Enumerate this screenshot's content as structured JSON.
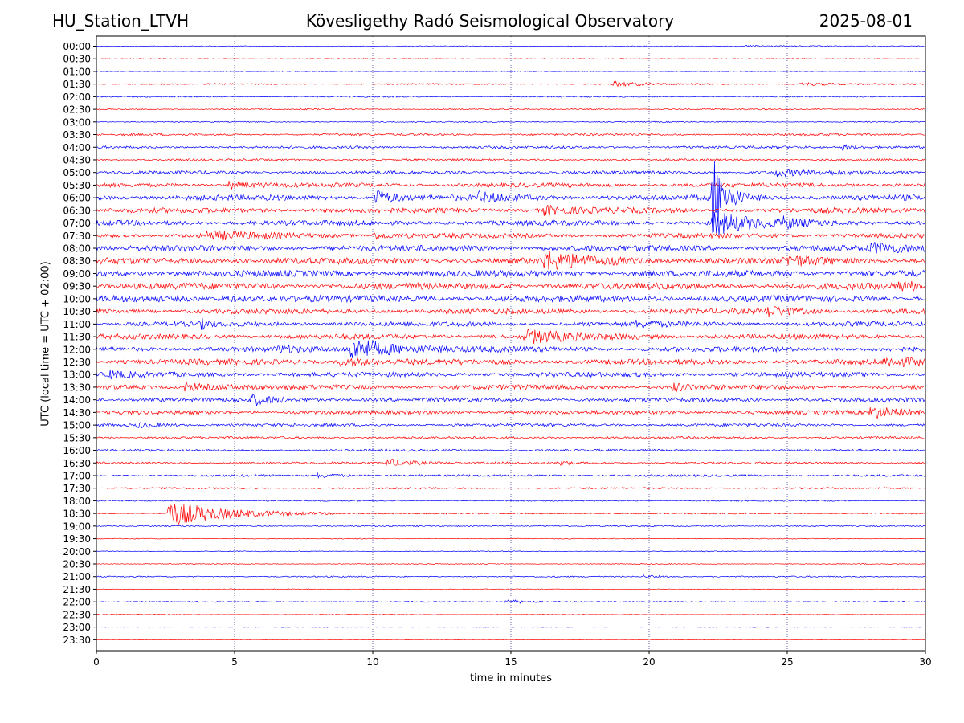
{
  "header": {
    "station": "HU_Station_LTVH",
    "observatory": "Kövesligethy Radó Seismological Observatory",
    "date": "2025-08-01"
  },
  "chart_data": {
    "type": "line",
    "xlabel": "time in minutes",
    "ylabel": "UTC (local time = UTC + 02:00)",
    "xlim": [
      0,
      30
    ],
    "x_ticks": [
      0,
      5,
      10,
      15,
      20,
      25,
      30
    ],
    "vertical_grid": [
      5,
      10,
      15,
      20,
      25
    ],
    "row_labels": [
      "00:00",
      "00:30",
      "01:00",
      "01:30",
      "02:00",
      "02:30",
      "03:00",
      "03:30",
      "04:00",
      "04:30",
      "05:00",
      "05:30",
      "06:00",
      "06:30",
      "07:00",
      "07:30",
      "08:00",
      "08:30",
      "09:00",
      "09:30",
      "10:00",
      "10:30",
      "11:00",
      "11:30",
      "12:00",
      "12:30",
      "13:00",
      "13:30",
      "14:00",
      "14:30",
      "15:00",
      "15:30",
      "16:00",
      "16:30",
      "17:00",
      "17:30",
      "18:00",
      "18:30",
      "19:00",
      "19:30",
      "20:00",
      "20:30",
      "21:00",
      "21:30",
      "22:00",
      "22:30",
      "23:00",
      "23:30"
    ],
    "colors": [
      "#0000ff",
      "#ff0000"
    ],
    "noise_levels": [
      0.4,
      0.4,
      0.3,
      0.6,
      0.6,
      0.6,
      0.5,
      1.0,
      1.2,
      1.0,
      1.5,
      2.0,
      2.6,
      2.4,
      2.4,
      2.2,
      2.8,
      3.0,
      3.0,
      3.0,
      3.0,
      2.4,
      2.2,
      2.4,
      2.4,
      2.6,
      2.2,
      2.2,
      2.0,
      1.8,
      1.4,
      1.1,
      1.0,
      1.0,
      1.0,
      0.7,
      0.6,
      0.6,
      0.6,
      0.4,
      0.4,
      0.4,
      0.6,
      0.4,
      0.5,
      0.3,
      0.3,
      0.3
    ],
    "events": [
      {
        "row": 0,
        "minute": 23.5,
        "amp": 1.2,
        "dur": 1.5
      },
      {
        "row": 3,
        "minute": 18.7,
        "amp": 3,
        "dur": 1
      },
      {
        "row": 3,
        "minute": 25.5,
        "amp": 2,
        "dur": 1
      },
      {
        "row": 8,
        "minute": 27,
        "amp": 3,
        "dur": 0.8
      },
      {
        "row": 10,
        "minute": 24.5,
        "amp": 4,
        "dur": 1.5
      },
      {
        "row": 11,
        "minute": 4.8,
        "amp": 4,
        "dur": 0.8
      },
      {
        "row": 12,
        "minute": 10.1,
        "amp": 12,
        "dur": 0.5
      },
      {
        "row": 12,
        "minute": 13.8,
        "amp": 6,
        "dur": 0.8
      },
      {
        "row": 12,
        "minute": 22.3,
        "amp": 60,
        "dur": 0.4
      },
      {
        "row": 13,
        "minute": 16.2,
        "amp": 5,
        "dur": 1
      },
      {
        "row": 14,
        "minute": 22.3,
        "amp": 15,
        "dur": 1.2
      },
      {
        "row": 14,
        "minute": 24.8,
        "amp": 5,
        "dur": 0.6
      },
      {
        "row": 15,
        "minute": 4,
        "amp": 5,
        "dur": 1.5
      },
      {
        "row": 15,
        "minute": 10,
        "amp": 4,
        "dur": 0.8
      },
      {
        "row": 16,
        "minute": 28,
        "amp": 5,
        "dur": 1.5
      },
      {
        "row": 17,
        "minute": 16.2,
        "amp": 10,
        "dur": 1.5
      },
      {
        "row": 17,
        "minute": 25,
        "amp": 5,
        "dur": 1
      },
      {
        "row": 19,
        "minute": 29,
        "amp": 4,
        "dur": 1.5
      },
      {
        "row": 20,
        "minute": 4.5,
        "amp": 3,
        "dur": 1
      },
      {
        "row": 21,
        "minute": 24.3,
        "amp": 6,
        "dur": 0.8
      },
      {
        "row": 22,
        "minute": 3.8,
        "amp": 5,
        "dur": 0.3
      },
      {
        "row": 22,
        "minute": 19.5,
        "amp": 3,
        "dur": 1
      },
      {
        "row": 23,
        "minute": 15.5,
        "amp": 8,
        "dur": 1.5
      },
      {
        "row": 24,
        "minute": 9.2,
        "amp": 14,
        "dur": 1.6
      },
      {
        "row": 24,
        "minute": 6.5,
        "amp": 3,
        "dur": 1
      },
      {
        "row": 25,
        "minute": 8.8,
        "amp": 5,
        "dur": 0.8
      },
      {
        "row": 25,
        "minute": 28.5,
        "amp": 4,
        "dur": 1.5
      },
      {
        "row": 26,
        "minute": 0.5,
        "amp": 4,
        "dur": 0.6
      },
      {
        "row": 27,
        "minute": 3.2,
        "amp": 5,
        "dur": 1
      },
      {
        "row": 27,
        "minute": 20.8,
        "amp": 5,
        "dur": 0.6
      },
      {
        "row": 28,
        "minute": 5.6,
        "amp": 6,
        "dur": 0.8
      },
      {
        "row": 29,
        "minute": 28,
        "amp": 7,
        "dur": 1.2
      },
      {
        "row": 30,
        "minute": 1.5,
        "amp": 3,
        "dur": 0.8
      },
      {
        "row": 33,
        "minute": 10.5,
        "amp": 5,
        "dur": 1
      },
      {
        "row": 33,
        "minute": 16.8,
        "amp": 5,
        "dur": 0.2
      },
      {
        "row": 34,
        "minute": 8,
        "amp": 3,
        "dur": 0.8
      },
      {
        "row": 37,
        "minute": 2.6,
        "amp": 16,
        "dur": 2
      },
      {
        "row": 44,
        "minute": 14.8,
        "amp": 3,
        "dur": 0.8
      },
      {
        "row": 42,
        "minute": 19.8,
        "amp": 2,
        "dur": 0.6
      }
    ]
  }
}
